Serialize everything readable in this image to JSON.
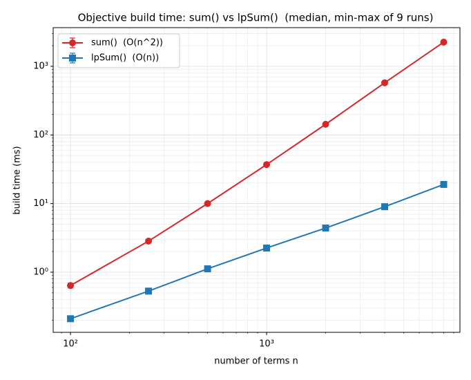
{
  "chart_data": {
    "type": "line",
    "title": "Objective build time: sum() vs lpSum()  (median, min-max of 9 runs)",
    "x_label": "number of terms n",
    "y_label": "build time (ms)",
    "x": [
      100,
      250,
      500,
      1000,
      2000,
      4000,
      8000
    ],
    "series": [
      {
        "name": "sum()  (O(n^2))",
        "color": "#d62728",
        "marker": "circle",
        "values": [
          0.64,
          2.84,
          10,
          37,
          143,
          575,
          2250
        ],
        "min": [
          0.59,
          2.7,
          9.8,
          36,
          140,
          565,
          2200
        ],
        "max": [
          0.69,
          2.95,
          10.3,
          38,
          146,
          585,
          2290
        ]
      },
      {
        "name": "lpSum()  (O(n))",
        "color": "#1f77b4",
        "marker": "square",
        "values": [
          0.21,
          0.53,
          1.12,
          2.25,
          4.4,
          9.0,
          19
        ],
        "min": [
          0.2,
          0.52,
          1.1,
          2.2,
          4.3,
          8.8,
          18.6
        ],
        "max": [
          0.22,
          0.54,
          1.14,
          2.3,
          4.5,
          9.2,
          19.4
        ]
      }
    ],
    "xscale": "log",
    "yscale": "log",
    "xlim": [
      81.6,
      9680
    ],
    "ylim": [
      0.133,
      3660
    ],
    "xticks": [
      {
        "value": 100,
        "label": "10²"
      },
      {
        "value": 1000,
        "label": "10³"
      }
    ],
    "yticks": [
      {
        "value": 1,
        "label": "10⁰"
      },
      {
        "value": 10,
        "label": "10¹"
      },
      {
        "value": 100,
        "label": "10²"
      },
      {
        "value": 1000,
        "label": "10³"
      }
    ],
    "xminorticks": [
      90,
      200,
      300,
      400,
      500,
      600,
      700,
      800,
      900,
      2000,
      3000,
      4000,
      5000,
      6000,
      7000,
      8000,
      9000
    ],
    "yminorticks": [
      0.2,
      0.3,
      0.4,
      0.5,
      0.6,
      0.7,
      0.8,
      0.9,
      2,
      3,
      4,
      5,
      6,
      7,
      8,
      9,
      20,
      30,
      40,
      50,
      60,
      70,
      80,
      90,
      200,
      300,
      400,
      500,
      600,
      700,
      800,
      900,
      2000,
      3000
    ],
    "grid": true,
    "legend_loc": "upper left"
  }
}
